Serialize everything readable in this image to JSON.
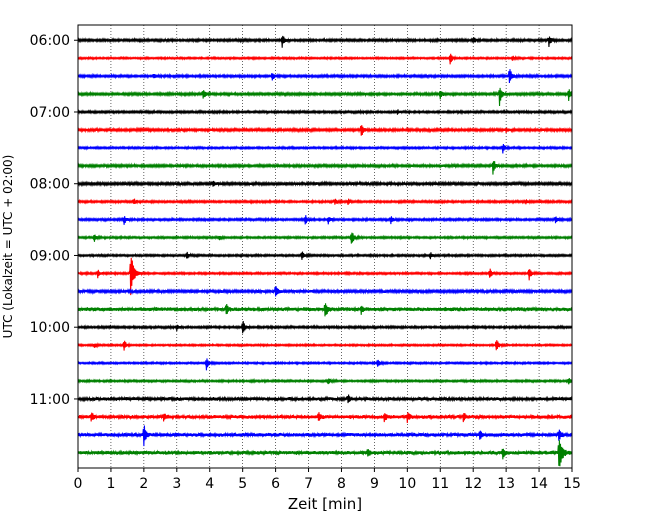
{
  "chart_data": {
    "type": "line",
    "title": "",
    "xlabel": "Zeit  [min]",
    "ylabel": "UTC (Lokalzeit = UTC + 02:00)",
    "xlim": [
      0,
      15
    ],
    "x_ticks": [
      "0",
      "1",
      "2",
      "3",
      "4",
      "5",
      "6",
      "7",
      "8",
      "9",
      "10",
      "11",
      "12",
      "13",
      "14",
      "15"
    ],
    "y_ticks": [
      "06:00",
      "07:00",
      "08:00",
      "09:00",
      "10:00",
      "11:00"
    ],
    "grid": "vertical-dotted",
    "legend": "none",
    "trace_colors": [
      "#000000",
      "#ff0000",
      "#0000ff",
      "#008000"
    ],
    "traces": [
      {
        "start": "06:00",
        "color": "#000000",
        "noise": 1.3,
        "events": [
          {
            "t": 6.2,
            "amp": 1.6
          },
          {
            "t": 12.0,
            "amp": 0.7
          },
          {
            "t": 14.3,
            "amp": 1.4
          }
        ]
      },
      {
        "start": "06:15",
        "color": "#ff0000",
        "noise": 1.0,
        "events": [
          {
            "t": 11.3,
            "amp": 1.5
          },
          {
            "t": 13.2,
            "amp": 0.5
          }
        ]
      },
      {
        "start": "06:30",
        "color": "#0000ff",
        "noise": 1.3,
        "events": [
          {
            "t": 2.3,
            "amp": 0.6
          },
          {
            "t": 5.9,
            "amp": 1.0
          },
          {
            "t": 13.1,
            "amp": 2.2
          }
        ]
      },
      {
        "start": "06:45",
        "color": "#008000",
        "noise": 1.4,
        "events": [
          {
            "t": 3.8,
            "amp": 1.3
          },
          {
            "t": 11.0,
            "amp": 1.0
          },
          {
            "t": 12.8,
            "amp": 2.4
          },
          {
            "t": 14.9,
            "amp": 1.6
          }
        ]
      },
      {
        "start": "07:00",
        "color": "#000000",
        "noise": 1.2,
        "events": [
          {
            "t": 9.7,
            "amp": 0.5
          }
        ]
      },
      {
        "start": "07:15",
        "color": "#ff0000",
        "noise": 1.5,
        "events": [
          {
            "t": 8.6,
            "amp": 1.8
          },
          {
            "t": 13.0,
            "amp": 0.6
          }
        ]
      },
      {
        "start": "07:30",
        "color": "#0000ff",
        "noise": 1.1,
        "events": [
          {
            "t": 12.9,
            "amp": 1.2
          }
        ]
      },
      {
        "start": "07:45",
        "color": "#008000",
        "noise": 1.4,
        "events": [
          {
            "t": 12.6,
            "amp": 1.9
          }
        ]
      },
      {
        "start": "08:00",
        "color": "#000000",
        "noise": 1.5,
        "events": [
          {
            "t": 4.1,
            "amp": 0.6
          }
        ]
      },
      {
        "start": "08:15",
        "color": "#ff0000",
        "noise": 1.2,
        "events": [
          {
            "t": 1.7,
            "amp": 0.6
          },
          {
            "t": 7.8,
            "amp": 0.7
          },
          {
            "t": 8.2,
            "amp": 0.6
          },
          {
            "t": 13.6,
            "amp": 0.5
          }
        ]
      },
      {
        "start": "08:30",
        "color": "#0000ff",
        "noise": 1.2,
        "events": [
          {
            "t": 1.4,
            "amp": 1.0
          },
          {
            "t": 6.9,
            "amp": 1.2
          },
          {
            "t": 7.6,
            "amp": 0.9
          },
          {
            "t": 9.5,
            "amp": 1.1
          },
          {
            "t": 14.5,
            "amp": 0.9
          }
        ]
      },
      {
        "start": "08:45",
        "color": "#008000",
        "noise": 1.1,
        "events": [
          {
            "t": 0.5,
            "amp": 0.9
          },
          {
            "t": 8.3,
            "amp": 2.0
          },
          {
            "t": 4.3,
            "amp": 0.5
          }
        ]
      },
      {
        "start": "09:00",
        "color": "#000000",
        "noise": 1.1,
        "events": [
          {
            "t": 3.3,
            "amp": 0.8
          },
          {
            "t": 6.8,
            "amp": 1.0
          },
          {
            "t": 10.7,
            "amp": 0.8
          }
        ]
      },
      {
        "start": "09:15",
        "color": "#ff0000",
        "noise": 1.1,
        "events": [
          {
            "t": 0.6,
            "amp": 1.1
          },
          {
            "t": 1.6,
            "amp": 5.2
          },
          {
            "t": 12.5,
            "amp": 1.2
          },
          {
            "t": 13.7,
            "amp": 1.4
          }
        ]
      },
      {
        "start": "09:30",
        "color": "#0000ff",
        "noise": 1.6,
        "events": [
          {
            "t": 6.0,
            "amp": 1.5
          }
        ]
      },
      {
        "start": "09:45",
        "color": "#008000",
        "noise": 2.2,
        "events": [
          {
            "t": 4.5,
            "amp": 1.2
          },
          {
            "t": 7.5,
            "amp": 2.0
          },
          {
            "t": 8.6,
            "amp": 1.0
          }
        ]
      },
      {
        "start": "10:00",
        "color": "#000000",
        "noise": 1.2,
        "events": [
          {
            "t": 3.0,
            "amp": 0.6
          },
          {
            "t": 5.0,
            "amp": 2.0
          }
        ]
      },
      {
        "start": "10:15",
        "color": "#ff0000",
        "noise": 1.0,
        "events": [
          {
            "t": 0.5,
            "amp": 0.5
          },
          {
            "t": 1.4,
            "amp": 1.3
          },
          {
            "t": 12.7,
            "amp": 1.6
          }
        ]
      },
      {
        "start": "10:30",
        "color": "#0000ff",
        "noise": 1.0,
        "events": [
          {
            "t": 3.9,
            "amp": 1.5
          },
          {
            "t": 9.1,
            "amp": 1.1
          }
        ]
      },
      {
        "start": "10:45",
        "color": "#008000",
        "noise": 1.1,
        "events": [
          {
            "t": 7.6,
            "amp": 0.8
          },
          {
            "t": 14.9,
            "amp": 0.8
          }
        ]
      },
      {
        "start": "11:00",
        "color": "#000000",
        "noise": 1.9,
        "events": [
          {
            "t": 8.2,
            "amp": 1.0
          }
        ]
      },
      {
        "start": "11:15",
        "color": "#ff0000",
        "noise": 2.0,
        "events": [
          {
            "t": 0.4,
            "amp": 1.2
          },
          {
            "t": 2.6,
            "amp": 1.0
          },
          {
            "t": 7.3,
            "amp": 1.1
          },
          {
            "t": 9.3,
            "amp": 1.0
          },
          {
            "t": 10.0,
            "amp": 1.0
          },
          {
            "t": 11.7,
            "amp": 1.0
          }
        ]
      },
      {
        "start": "11:30",
        "color": "#0000ff",
        "noise": 2.0,
        "events": [
          {
            "t": 2.0,
            "amp": 2.6
          },
          {
            "t": 12.2,
            "amp": 1.0
          },
          {
            "t": 14.6,
            "amp": 1.6
          }
        ]
      },
      {
        "start": "11:45",
        "color": "#008000",
        "noise": 2.1,
        "events": [
          {
            "t": 8.8,
            "amp": 1.0
          },
          {
            "t": 12.9,
            "amp": 1.1
          },
          {
            "t": 14.6,
            "amp": 4.0
          }
        ]
      }
    ]
  }
}
